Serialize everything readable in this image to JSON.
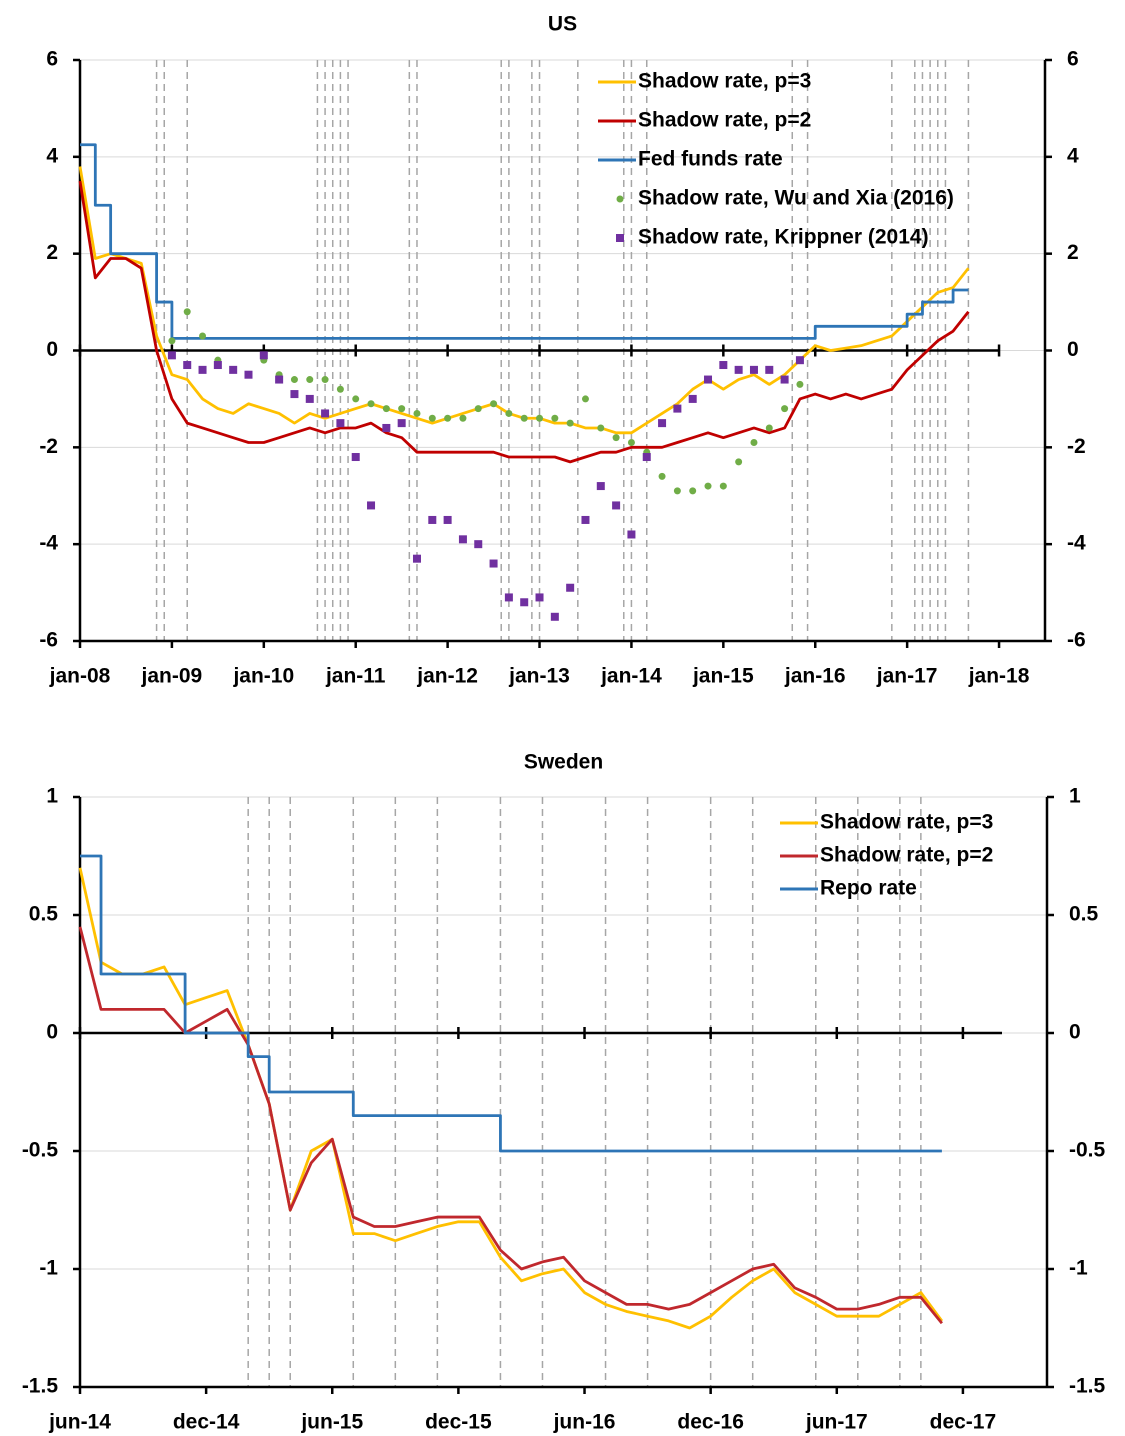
{
  "chart_data": [
    {
      "type": "line",
      "title": "US",
      "x": [
        "2008-01",
        "2008-03",
        "2008-05",
        "2008-07",
        "2008-09",
        "2008-11",
        "2009-01",
        "2009-03",
        "2009-05",
        "2009-07",
        "2009-09",
        "2009-11",
        "2010-01",
        "2010-03",
        "2010-05",
        "2010-07",
        "2010-09",
        "2010-11",
        "2011-01",
        "2011-03",
        "2011-05",
        "2011-07",
        "2011-09",
        "2011-11",
        "2012-01",
        "2012-03",
        "2012-05",
        "2012-07",
        "2012-09",
        "2012-11",
        "2013-01",
        "2013-03",
        "2013-05",
        "2013-07",
        "2013-09",
        "2013-11",
        "2014-01",
        "2014-03",
        "2014-05",
        "2014-07",
        "2014-09",
        "2014-11",
        "2015-01",
        "2015-03",
        "2015-05",
        "2015-07",
        "2015-09",
        "2015-11",
        "2016-01",
        "2016-03",
        "2016-05",
        "2016-07",
        "2016-09",
        "2016-11",
        "2017-01",
        "2017-03",
        "2017-05",
        "2017-07",
        "2017-09"
      ],
      "xlim": [
        "2008-01",
        "2018-07"
      ],
      "xticks": [
        {
          "value": "2008-01",
          "label": "jan-08"
        },
        {
          "value": "2009-01",
          "label": "jan-09"
        },
        {
          "value": "2010-01",
          "label": "jan-10"
        },
        {
          "value": "2011-01",
          "label": "jan-11"
        },
        {
          "value": "2012-01",
          "label": "jan-12"
        },
        {
          "value": "2013-01",
          "label": "jan-13"
        },
        {
          "value": "2014-01",
          "label": "jan-14"
        },
        {
          "value": "2015-01",
          "label": "jan-15"
        },
        {
          "value": "2016-01",
          "label": "jan-16"
        },
        {
          "value": "2017-01",
          "label": "jan-17"
        },
        {
          "value": "2018-01",
          "label": "jan-18"
        }
      ],
      "ylim": [
        -6,
        6
      ],
      "yticks": [
        -6,
        -4,
        -2,
        0,
        2,
        4,
        6
      ],
      "grid": true,
      "vlines": [
        "2008-11",
        "2008-12",
        "2009-03",
        "2010-08",
        "2010-09",
        "2010-10",
        "2010-11",
        "2010-12",
        "2011-08",
        "2011-09",
        "2012-08",
        "2012-09",
        "2012-12",
        "2013-01",
        "2013-06",
        "2013-12",
        "2014-01",
        "2014-03",
        "2015-10",
        "2015-12",
        "2016-11",
        "2017-02",
        "2017-03",
        "2017-04",
        "2017-05",
        "2017-06",
        "2017-09"
      ],
      "series": [
        {
          "name": "Shadow rate, p=3",
          "color": "#FFC000",
          "values": [
            3.8,
            1.9,
            2.0,
            1.9,
            1.8,
            0.3,
            -0.5,
            -0.6,
            -1.0,
            -1.2,
            -1.3,
            -1.1,
            -1.2,
            -1.3,
            -1.5,
            -1.3,
            -1.4,
            -1.3,
            -1.2,
            -1.1,
            -1.2,
            -1.3,
            -1.4,
            -1.5,
            -1.4,
            -1.3,
            -1.2,
            -1.1,
            -1.3,
            -1.4,
            -1.4,
            -1.5,
            -1.5,
            -1.6,
            -1.6,
            -1.7,
            -1.7,
            -1.5,
            -1.3,
            -1.1,
            -0.8,
            -0.6,
            -0.8,
            -0.6,
            -0.5,
            -0.7,
            -0.5,
            -0.2,
            0.1,
            0.0,
            0.05,
            0.1,
            0.2,
            0.3,
            0.6,
            0.9,
            1.2,
            1.3,
            1.7
          ]
        },
        {
          "name": "Shadow rate, p=2",
          "color": "#C00000",
          "values": [
            3.5,
            1.5,
            1.9,
            1.9,
            1.7,
            0.0,
            -1.0,
            -1.5,
            -1.6,
            -1.7,
            -1.8,
            -1.9,
            -1.9,
            -1.8,
            -1.7,
            -1.6,
            -1.7,
            -1.6,
            -1.6,
            -1.5,
            -1.7,
            -1.8,
            -2.1,
            -2.1,
            -2.1,
            -2.1,
            -2.1,
            -2.1,
            -2.2,
            -2.2,
            -2.2,
            -2.2,
            -2.3,
            -2.2,
            -2.1,
            -2.1,
            -2.0,
            -2.0,
            -2.0,
            -1.9,
            -1.8,
            -1.7,
            -1.8,
            -1.7,
            -1.6,
            -1.7,
            -1.6,
            -1.0,
            -0.9,
            -1.0,
            -0.9,
            -1.0,
            -0.9,
            -0.8,
            -0.4,
            -0.1,
            0.2,
            0.4,
            0.8
          ]
        },
        {
          "name": "Fed funds rate",
          "color": "#2E75B6",
          "step": true,
          "values": [
            4.25,
            3.0,
            2.0,
            2.0,
            2.0,
            1.0,
            0.25,
            0.25,
            0.25,
            0.25,
            0.25,
            0.25,
            0.25,
            0.25,
            0.25,
            0.25,
            0.25,
            0.25,
            0.25,
            0.25,
            0.25,
            0.25,
            0.25,
            0.25,
            0.25,
            0.25,
            0.25,
            0.25,
            0.25,
            0.25,
            0.25,
            0.25,
            0.25,
            0.25,
            0.25,
            0.25,
            0.25,
            0.25,
            0.25,
            0.25,
            0.25,
            0.25,
            0.25,
            0.25,
            0.25,
            0.25,
            0.25,
            0.25,
            0.5,
            0.5,
            0.5,
            0.5,
            0.5,
            0.5,
            0.75,
            1.0,
            1.0,
            1.25,
            1.25
          ]
        },
        {
          "name": "Shadow rate, Wu and Xia (2016)",
          "color": "#70AD47",
          "marker": "circle",
          "values": [
            null,
            null,
            null,
            null,
            null,
            null,
            0.2,
            0.8,
            0.3,
            -0.2,
            -0.4,
            -0.5,
            -0.2,
            -0.5,
            -0.6,
            -0.6,
            -0.6,
            -0.8,
            -1.0,
            -1.1,
            -1.2,
            -1.2,
            -1.3,
            -1.4,
            -1.4,
            -1.4,
            -1.2,
            -1.1,
            -1.3,
            -1.4,
            -1.4,
            -1.4,
            -1.5,
            -1.0,
            -1.6,
            -1.8,
            -1.9,
            -2.1,
            -2.6,
            -2.9,
            -2.9,
            -2.8,
            -2.8,
            -2.3,
            -1.9,
            -1.6,
            -1.2,
            -0.7,
            null,
            null,
            null,
            null,
            null,
            null,
            null,
            null,
            null,
            null,
            null
          ]
        },
        {
          "name": "Shadow rate, Krippner (2014)",
          "color": "#7030A0",
          "marker": "square",
          "values": [
            null,
            null,
            null,
            null,
            null,
            null,
            -0.1,
            -0.3,
            -0.4,
            -0.3,
            -0.4,
            -0.5,
            -0.1,
            -0.6,
            -0.9,
            -1.0,
            -1.3,
            -1.5,
            -2.2,
            -3.2,
            -1.6,
            -1.5,
            -4.3,
            -3.5,
            -3.5,
            -3.9,
            -4.0,
            -4.4,
            -5.1,
            -5.2,
            -5.1,
            -5.5,
            -4.9,
            -3.5,
            -2.8,
            -3.2,
            -3.8,
            -2.2,
            -1.5,
            -1.2,
            -1.0,
            -0.6,
            -0.3,
            -0.4,
            -0.4,
            -0.4,
            -0.6,
            -0.2,
            null,
            null,
            null,
            null,
            null,
            null,
            null,
            null,
            null,
            null,
            null
          ]
        }
      ]
    },
    {
      "type": "line",
      "title": "Sweden",
      "x": [
        "2014-06",
        "2014-07",
        "2014-08",
        "2014-09",
        "2014-10",
        "2014-11",
        "2014-12",
        "2015-01",
        "2015-02",
        "2015-03",
        "2015-04",
        "2015-05",
        "2015-06",
        "2015-07",
        "2015-08",
        "2015-09",
        "2015-10",
        "2015-11",
        "2015-12",
        "2016-01",
        "2016-02",
        "2016-03",
        "2016-04",
        "2016-05",
        "2016-06",
        "2016-07",
        "2016-08",
        "2016-09",
        "2016-10",
        "2016-11",
        "2016-12",
        "2017-01",
        "2017-02",
        "2017-03",
        "2017-04",
        "2017-05",
        "2017-06",
        "2017-07",
        "2017-08",
        "2017-09",
        "2017-10",
        "2017-11"
      ],
      "xlim": [
        "2014-06",
        "2018-04"
      ],
      "xticks": [
        {
          "value": "2014-06",
          "label": "jun-14"
        },
        {
          "value": "2014-12",
          "label": "dec-14"
        },
        {
          "value": "2015-06",
          "label": "jun-15"
        },
        {
          "value": "2015-12",
          "label": "dec-15"
        },
        {
          "value": "2016-06",
          "label": "jun-16"
        },
        {
          "value": "2016-12",
          "label": "dec-16"
        },
        {
          "value": "2017-06",
          "label": "jun-17"
        },
        {
          "value": "2017-12",
          "label": "dec-17"
        }
      ],
      "ylim": [
        -1.5,
        1
      ],
      "yticks": [
        -1.5,
        -1,
        -0.5,
        0,
        0.5,
        1
      ],
      "grid": true,
      "vlines": [
        "2015-02",
        "2015-03",
        "2015-04",
        "2015-07",
        "2015-09",
        "2015-11",
        "2016-02",
        "2016-04",
        "2016-07",
        "2016-09",
        "2016-12",
        "2017-02",
        "2017-05",
        "2017-07",
        "2017-09",
        "2017-10"
      ],
      "series": [
        {
          "name": "Shadow rate, p=3",
          "color": "#FFC000",
          "values": [
            0.7,
            0.3,
            0.25,
            0.25,
            0.28,
            0.12,
            0.15,
            0.18,
            -0.05,
            -0.3,
            -0.75,
            -0.5,
            -0.45,
            -0.85,
            -0.85,
            -0.88,
            -0.85,
            -0.82,
            -0.8,
            -0.8,
            -0.95,
            -1.05,
            -1.02,
            -1.0,
            -1.1,
            -1.15,
            -1.18,
            -1.2,
            -1.22,
            -1.25,
            -1.2,
            -1.12,
            -1.05,
            -1.0,
            -1.1,
            -1.15,
            -1.2,
            -1.2,
            -1.2,
            -1.15,
            -1.1,
            -1.22
          ]
        },
        {
          "name": "Shadow rate, p=2",
          "color": "#C0282D",
          "values": [
            0.45,
            0.1,
            0.1,
            0.1,
            0.1,
            0.0,
            0.05,
            0.1,
            -0.05,
            -0.3,
            -0.75,
            -0.55,
            -0.45,
            -0.78,
            -0.82,
            -0.82,
            -0.8,
            -0.78,
            -0.78,
            -0.78,
            -0.92,
            -1.0,
            -0.97,
            -0.95,
            -1.05,
            -1.1,
            -1.15,
            -1.15,
            -1.17,
            -1.15,
            -1.1,
            -1.05,
            -1.0,
            -0.98,
            -1.08,
            -1.12,
            -1.17,
            -1.17,
            -1.15,
            -1.12,
            -1.12,
            -1.23
          ]
        },
        {
          "name": "Repo rate",
          "color": "#2E75B6",
          "step": true,
          "values": [
            0.75,
            0.25,
            0.25,
            0.25,
            0.25,
            0.0,
            0.0,
            0.0,
            -0.1,
            -0.25,
            -0.25,
            -0.25,
            -0.25,
            -0.35,
            -0.35,
            -0.35,
            -0.35,
            -0.35,
            -0.35,
            -0.35,
            -0.5,
            -0.5,
            -0.5,
            -0.5,
            -0.5,
            -0.5,
            -0.5,
            -0.5,
            -0.5,
            -0.5,
            -0.5,
            -0.5,
            -0.5,
            -0.5,
            -0.5,
            -0.5,
            -0.5,
            -0.5,
            -0.5,
            -0.5,
            -0.5,
            -0.5
          ]
        }
      ]
    }
  ]
}
